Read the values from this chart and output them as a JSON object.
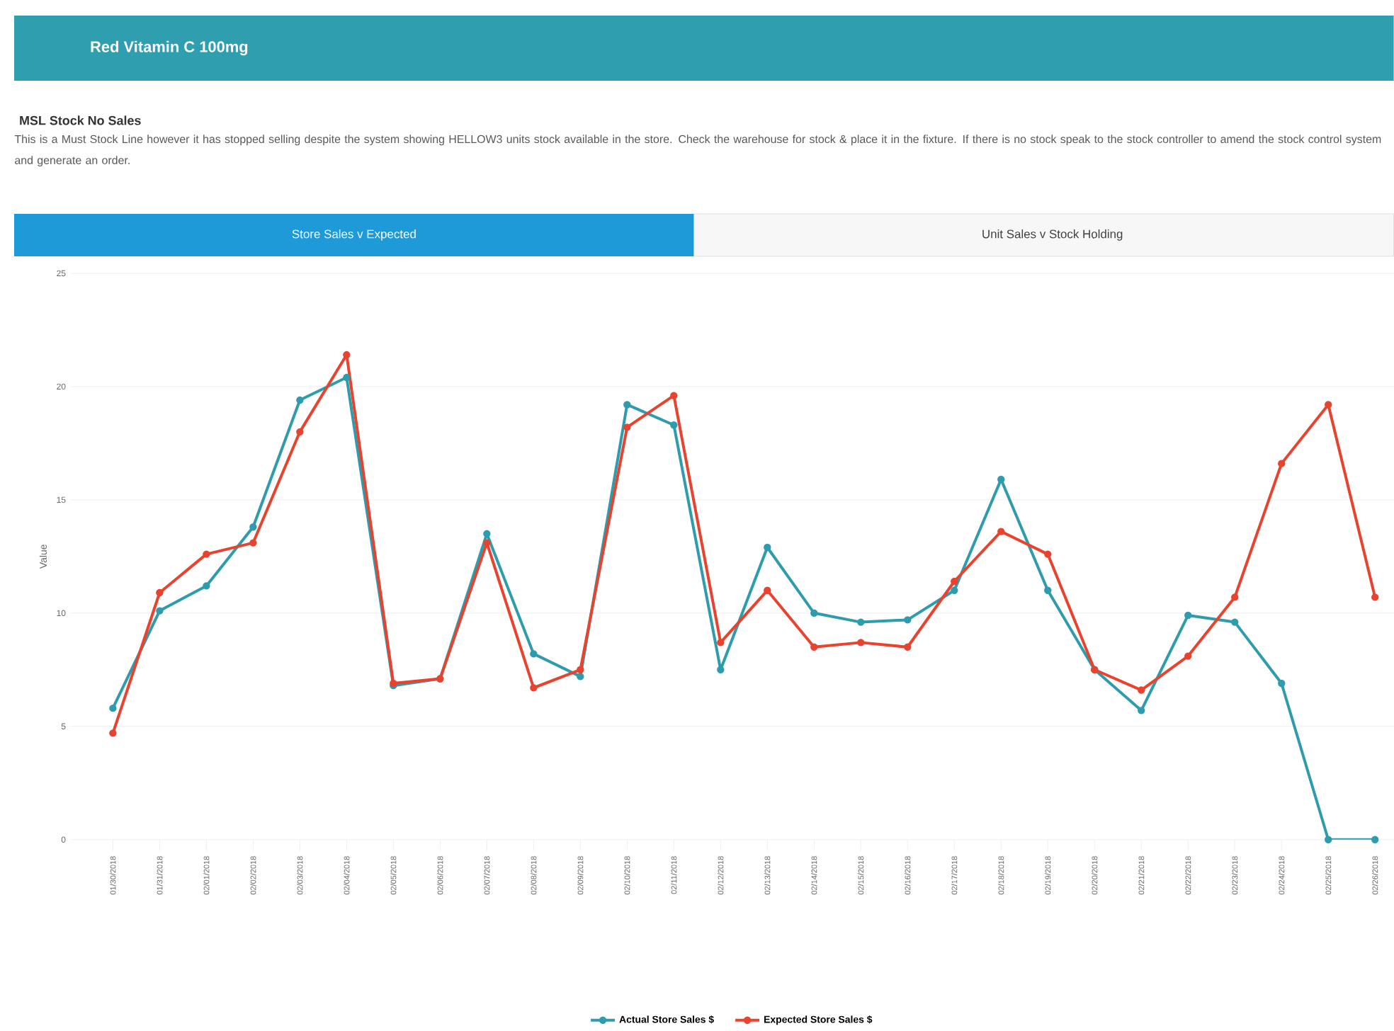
{
  "chart_data": {
    "type": "line",
    "title": "Red Vitamin C 100mg",
    "subtitle": "MSL Stock No Sales",
    "annotations": [
      "This is a Must Stock Line however it has stopped selling despite the system showing HELLOW3 units stock available in the store. Check the warehouse for stock & place it in the fixture. If there is no stock speak to the stock controller to amend the stock control system and generate an order.",
      "Store Sales v Expected",
      "Unit Sales v Stock Holding"
    ],
    "ylabel": "Value",
    "categories": [
      "01/30/2018",
      "01/31/2018",
      "02/01/2018",
      "02/02/2018",
      "02/03/2018",
      "02/04/2018",
      "02/05/2018",
      "02/06/2018",
      "02/07/2018",
      "02/08/2018",
      "02/09/2018",
      "02/10/2018",
      "02/11/2018",
      "02/12/2018",
      "02/13/2018",
      "02/14/2018",
      "02/15/2018",
      "02/16/2018",
      "02/17/2018",
      "02/18/2018",
      "02/19/2018",
      "02/20/2018",
      "02/21/2018",
      "02/22/2018",
      "02/23/2018",
      "02/24/2018",
      "02/25/2018",
      "02/26/2018"
    ],
    "series": [
      {
        "name": "Actual Store Sales $",
        "color": "#2e9cad",
        "values": [
          5.8,
          10.1,
          11.2,
          13.8,
          19.4,
          20.4,
          6.8,
          7.1,
          13.5,
          8.2,
          7.2,
          19.2,
          18.3,
          7.5,
          12.9,
          10.0,
          9.6,
          9.7,
          11.0,
          15.9,
          11.0,
          7.5,
          5.7,
          9.9,
          9.6,
          6.9,
          0,
          0
        ]
      },
      {
        "name": "Expected Store Sales $",
        "color": "#e8432f",
        "values": [
          4.7,
          10.9,
          12.6,
          13.1,
          18.0,
          21.4,
          6.9,
          7.1,
          13.1,
          6.7,
          7.5,
          18.2,
          19.6,
          8.7,
          11.0,
          8.5,
          8.7,
          8.5,
          11.4,
          13.6,
          12.6,
          7.5,
          6.6,
          8.1,
          10.7,
          16.6,
          19.2,
          10.7
        ]
      }
    ],
    "ylim": [
      0,
      25
    ],
    "yticks": [
      0,
      5,
      10,
      15,
      20,
      25
    ],
    "grid": "y",
    "legend": "bottom",
    "marker": "circle",
    "line_style": "solid"
  }
}
